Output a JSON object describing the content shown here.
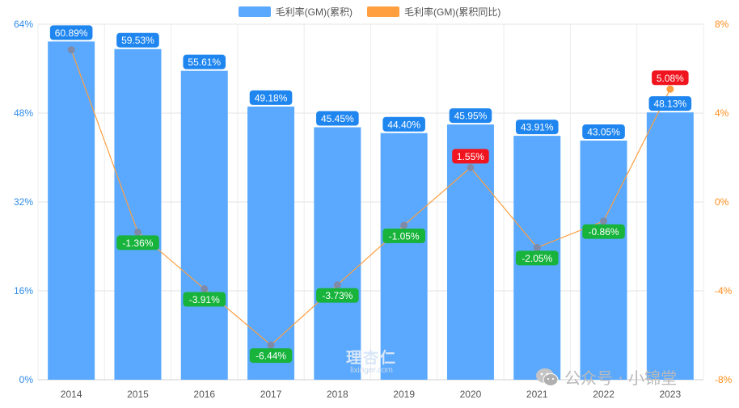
{
  "legend": {
    "items": [
      {
        "name": "毛利率(GM)(累积)",
        "color": "#5aa9fe"
      },
      {
        "name": "毛利率(GM)(累积同比)",
        "color": "#ff9f3f"
      }
    ]
  },
  "watermarks": {
    "logo_main": "理杏仁",
    "logo_sub": "lixinger.com",
    "wechat_text": "公众号 · 小锦堂"
  },
  "chart_data": {
    "type": "bar",
    "categories": [
      "2014",
      "2015",
      "2016",
      "2017",
      "2018",
      "2019",
      "2020",
      "2021",
      "2022",
      "2023"
    ],
    "series": [
      {
        "name": "毛利率(GM)(累积)",
        "type": "bar",
        "axis": "left",
        "color": "#5aa9fe",
        "values": [
          60.89,
          59.53,
          55.61,
          49.18,
          45.45,
          44.4,
          45.95,
          43.91,
          43.05,
          48.13
        ],
        "labels": [
          "60.89%",
          "59.53%",
          "55.61%",
          "49.18%",
          "45.45%",
          "44.40%",
          "45.95%",
          "43.91%",
          "43.05%",
          "48.13%"
        ]
      },
      {
        "name": "毛利率(GM)(累积同比)",
        "type": "line",
        "axis": "right",
        "color": "#ff9f3f",
        "values": [
          6.85,
          -1.36,
          -3.91,
          -6.44,
          -3.73,
          -1.05,
          1.55,
          -2.05,
          -0.86,
          5.08
        ],
        "labels": [
          "",
          "-1.36%",
          "-3.91%",
          "-6.44%",
          "-3.73%",
          "-1.05%",
          "1.55%",
          "-2.05%",
          "-0.86%",
          "5.08%"
        ]
      }
    ],
    "y_left": {
      "min": 0,
      "max": 64,
      "ticks": [
        "0%",
        "16%",
        "32%",
        "48%",
        "64%"
      ],
      "color": "#2f8be6"
    },
    "y_right": {
      "min": -8,
      "max": 8,
      "ticks": [
        "-8%",
        "-4%",
        "0%",
        "4%",
        "8%"
      ],
      "color": "#ff8c1a"
    },
    "grid": true,
    "legend_position": "top-center",
    "colors": {
      "bar_label_bg": "#1f86f0",
      "positive_label_bg": "#f0141e",
      "negative_label_bg": "#17b33b",
      "line_point": "#7e8aa8"
    }
  }
}
